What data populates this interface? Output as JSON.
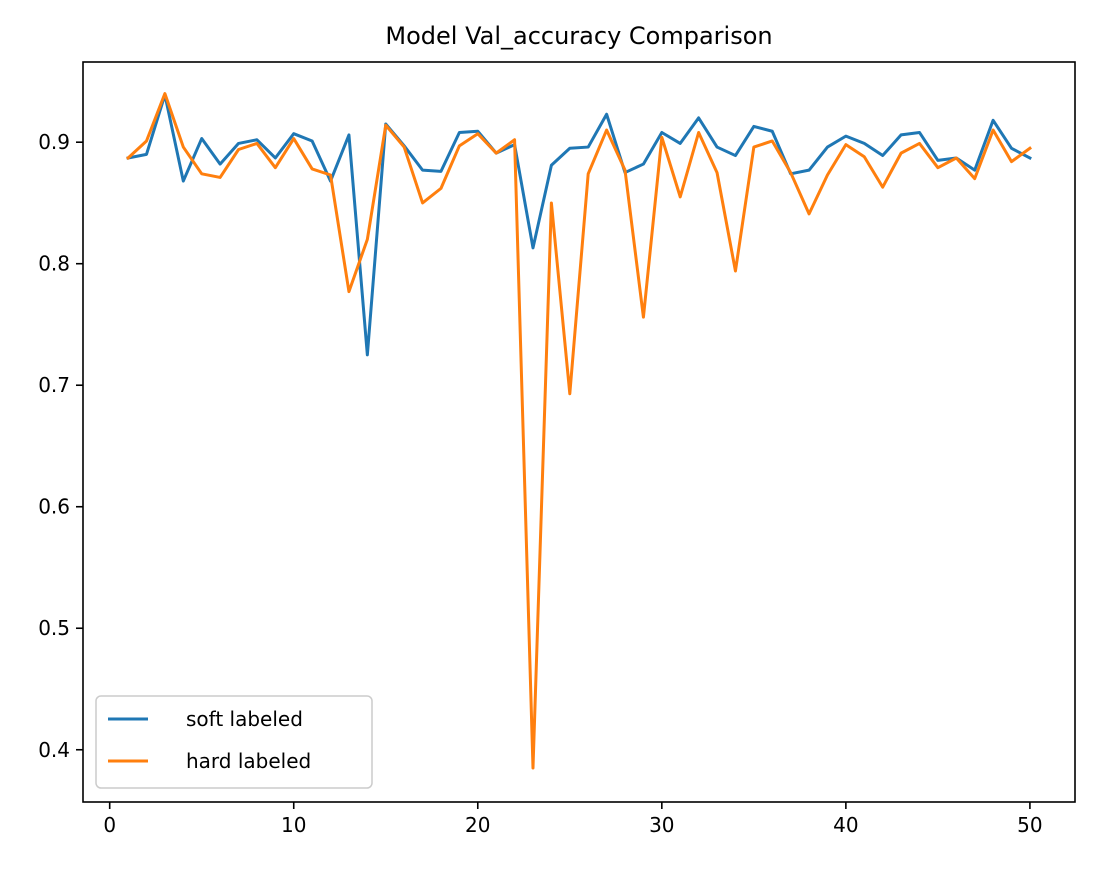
{
  "chart_data": {
    "type": "line",
    "title": "Model Val_accuracy Comparison",
    "xlabel": "",
    "ylabel": "",
    "xlim": [
      -1.45,
      52.45
    ],
    "ylim": [
      0.357,
      0.966
    ],
    "x_ticks": [
      0,
      10,
      20,
      30,
      40,
      50
    ],
    "y_ticks": [
      0.4,
      0.5,
      0.6,
      0.7,
      0.8,
      0.9
    ],
    "x_tick_labels": [
      "0",
      "10",
      "20",
      "30",
      "40",
      "50"
    ],
    "y_tick_labels": [
      "0.4",
      "0.5",
      "0.6",
      "0.7",
      "0.8",
      "0.9"
    ],
    "grid": false,
    "legend_position": "lower-left",
    "x": [
      1,
      2,
      3,
      4,
      5,
      6,
      7,
      8,
      9,
      10,
      11,
      12,
      13,
      14,
      15,
      16,
      17,
      18,
      19,
      20,
      21,
      22,
      23,
      24,
      25,
      26,
      27,
      28,
      29,
      30,
      31,
      32,
      33,
      34,
      35,
      36,
      37,
      38,
      39,
      40,
      41,
      42,
      43,
      44,
      45,
      46,
      47,
      48,
      49,
      50
    ],
    "series": [
      {
        "name": "soft labeled",
        "color": "#1f77b4",
        "values": [
          0.887,
          0.89,
          0.939,
          0.868,
          0.903,
          0.882,
          0.899,
          0.902,
          0.887,
          0.907,
          0.901,
          0.868,
          0.906,
          0.725,
          0.915,
          0.897,
          0.877,
          0.876,
          0.908,
          0.909,
          0.891,
          0.898,
          0.813,
          0.881,
          0.895,
          0.896,
          0.923,
          0.875,
          0.882,
          0.908,
          0.899,
          0.92,
          0.896,
          0.889,
          0.913,
          0.909,
          0.874,
          0.877,
          0.896,
          0.905,
          0.899,
          0.889,
          0.906,
          0.908,
          0.885,
          0.887,
          0.877,
          0.918,
          0.895,
          0.887
        ]
      },
      {
        "name": "hard labeled",
        "color": "#ff7f0e",
        "values": [
          0.887,
          0.901,
          0.94,
          0.896,
          0.874,
          0.871,
          0.894,
          0.899,
          0.879,
          0.903,
          0.878,
          0.873,
          0.777,
          0.82,
          0.914,
          0.896,
          0.85,
          0.862,
          0.897,
          0.907,
          0.891,
          0.902,
          0.385,
          0.85,
          0.693,
          0.874,
          0.91,
          0.877,
          0.756,
          0.904,
          0.855,
          0.908,
          0.875,
          0.794,
          0.896,
          0.901,
          0.875,
          0.841,
          0.873,
          0.898,
          0.888,
          0.863,
          0.891,
          0.899,
          0.879,
          0.887,
          0.87,
          0.91,
          0.884,
          0.895
        ]
      }
    ]
  }
}
